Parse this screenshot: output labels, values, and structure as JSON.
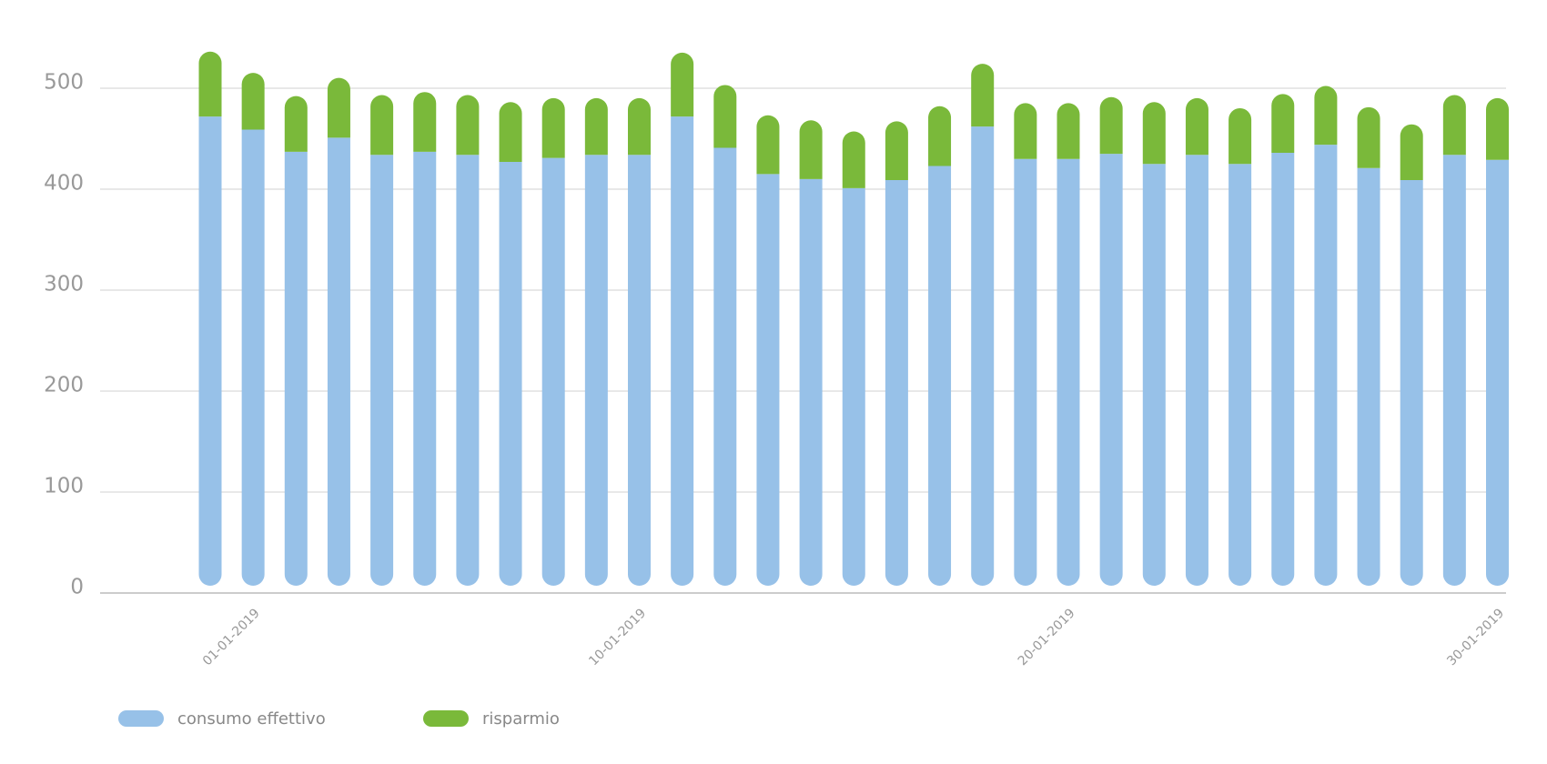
{
  "chart_data": {
    "type": "stacked_bar",
    "categories": [
      null,
      "01-01-2019",
      null,
      null,
      null,
      null,
      null,
      null,
      null,
      null,
      "10-01-2019",
      null,
      null,
      null,
      null,
      null,
      null,
      null,
      null,
      null,
      "20-01-2019",
      null,
      null,
      null,
      null,
      null,
      null,
      null,
      null,
      null,
      "30-01-2019"
    ],
    "series": [
      {
        "name": "consumo effettivo",
        "color": "#97c1e8",
        "values": [
          472,
          459,
          437,
          451,
          434,
          437,
          434,
          427,
          431,
          434,
          434,
          472,
          441,
          415,
          410,
          401,
          409,
          423,
          462,
          430,
          430,
          435,
          425,
          434,
          425,
          436,
          444,
          421,
          409,
          434,
          429
        ]
      },
      {
        "name": "risparmio",
        "color": "#7ab93a",
        "values": [
          57,
          49,
          48,
          52,
          52,
          52,
          52,
          52,
          52,
          49,
          49,
          56,
          55,
          51,
          51,
          49,
          51,
          52,
          55,
          48,
          48,
          49,
          54,
          49,
          48,
          51,
          51,
          53,
          48,
          52,
          54
        ]
      }
    ],
    "ylim": [
      0,
      500
    ],
    "yticks": [
      0,
      100,
      200,
      300,
      400,
      500
    ],
    "grid": true,
    "legend": "bottom-left"
  }
}
